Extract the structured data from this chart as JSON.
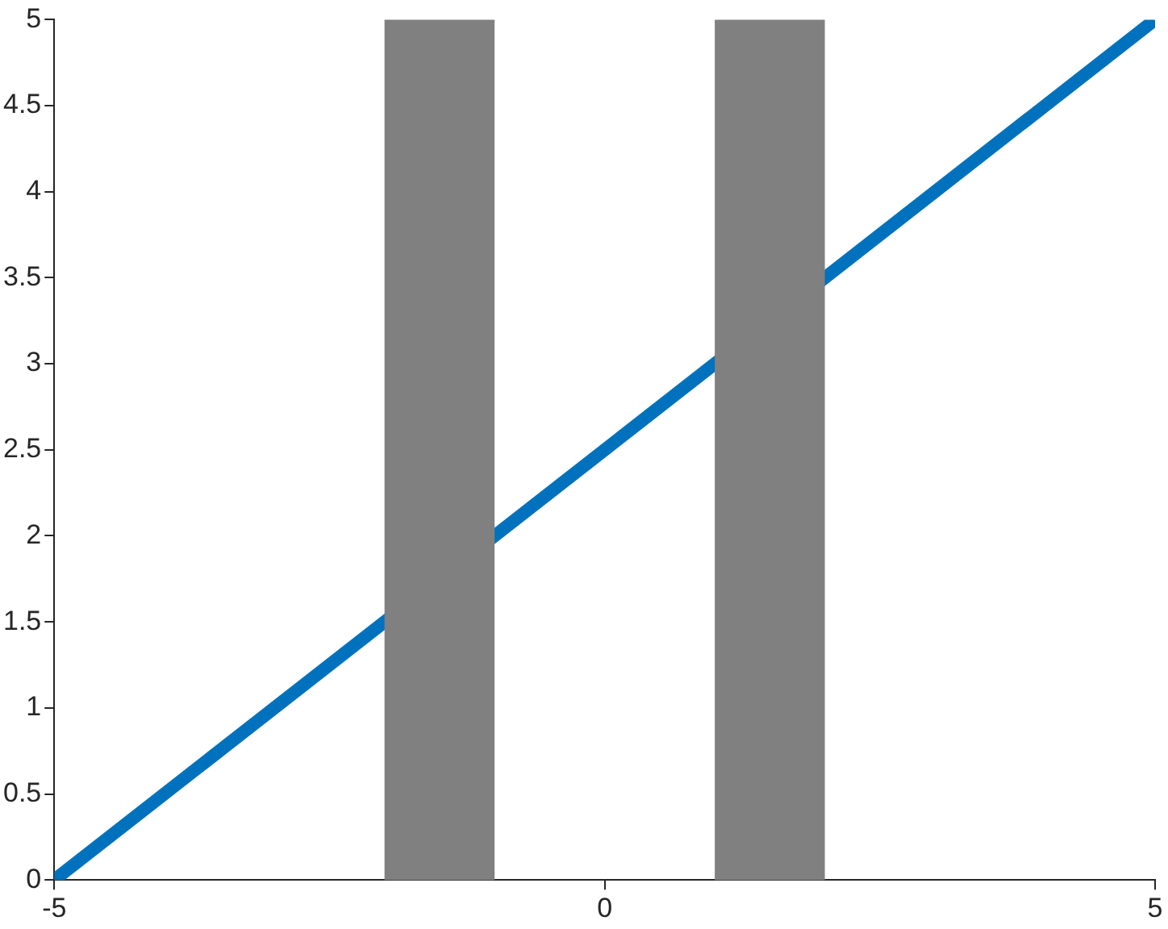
{
  "chart_data": {
    "type": "line",
    "x": [
      -5,
      5
    ],
    "series": [
      {
        "color": "#0072bd",
        "values": [
          0,
          5
        ]
      }
    ],
    "xlim": [
      -5,
      5
    ],
    "xticks": [
      -5,
      0,
      5
    ],
    "ylim": [
      0,
      5
    ],
    "yticks": [
      0,
      0.5,
      1,
      1.5,
      2,
      2.5,
      3,
      3.5,
      4,
      4.5,
      5
    ],
    "bands": [
      {
        "axis": "x",
        "from": -2,
        "to": -1,
        "color": "#808080"
      },
      {
        "axis": "x",
        "from": 1,
        "to": 2,
        "color": "#808080"
      }
    ],
    "grid": false,
    "legend": false,
    "marker": "none",
    "line_style": "solid"
  }
}
